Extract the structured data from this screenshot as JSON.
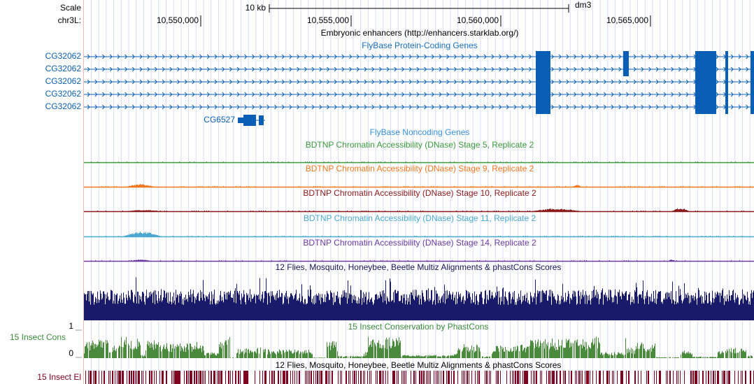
{
  "ruler": {
    "scale_label": "Scale",
    "scale_bar": "10 kb",
    "assembly": "dm3",
    "chrom": "chr3L:",
    "positions": [
      "10,550,000",
      "10,555,000",
      "10,560,000",
      "10,565,000"
    ]
  },
  "tracks": {
    "enhancers": "Embryonic enhancers (http://enhancers.starklab.org/)",
    "protein_coding": {
      "title": "FlyBase Protein-Coding Genes",
      "genes": [
        "CG32062",
        "CG32062",
        "CG32062",
        "CG32062",
        "CG32062",
        "CG6527"
      ]
    },
    "noncoding": "FlyBase Noncoding Genes",
    "dnase": [
      "BDTNP Chromatin Accessibility (DNase) Stage 5, Replicate 2",
      "BDTNP Chromatin Accessibility (DNase) Stage 9, Replicate 2",
      "BDTNP Chromatin Accessibility (DNase) Stage 10, Replicate 2",
      "BDTNP Chromatin Accessibility (DNase) Stage 11, Replicate 2",
      "BDTNP Chromatin Accessibility (DNase) Stage 14, Replicate 2"
    ],
    "multiz": "12 Flies, Mosquito, Honeybee, Beetle Multiz Alignments & phastCons Scores",
    "conservation": {
      "title": "15 Insect Conservation by PhastCons",
      "side_label": "15 Insect Cons",
      "max_label": "1",
      "min_label": "0"
    },
    "multiz_2": "12 Flies, Mosquito, Honeybee, Beetle Multiz Alignments & phastCons Scores",
    "elements": {
      "side_label": "15 Insect El"
    }
  }
}
